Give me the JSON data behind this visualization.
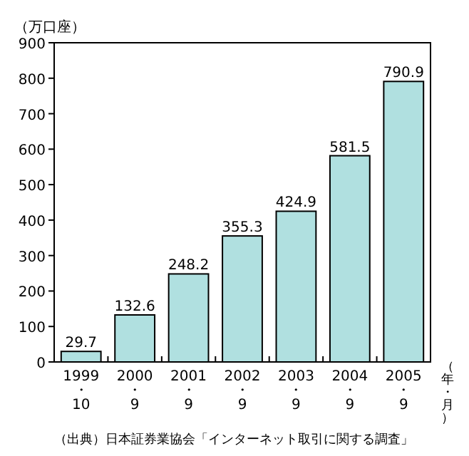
{
  "chart_data": {
    "type": "bar",
    "ylabel": "（万口座）",
    "xlabel": "（年・月）",
    "categories": [
      "1999\n・\n10",
      "2000\n・\n9",
      "2001\n・\n9",
      "2002\n・\n9",
      "2003\n・\n9",
      "2004\n・\n9",
      "2005\n・\n9"
    ],
    "values": [
      29.7,
      132.6,
      248.2,
      355.3,
      424.9,
      581.5,
      790.9
    ],
    "color": "#b0e0e0",
    "ylim": [
      0,
      900
    ],
    "yticks": [
      0,
      100,
      200,
      300,
      400,
      500,
      600,
      700,
      800,
      900
    ],
    "data_labels": true,
    "grid": false,
    "annotations": [
      "（出典）日本証券業協会「インターネット取引に関する調査」"
    ]
  }
}
